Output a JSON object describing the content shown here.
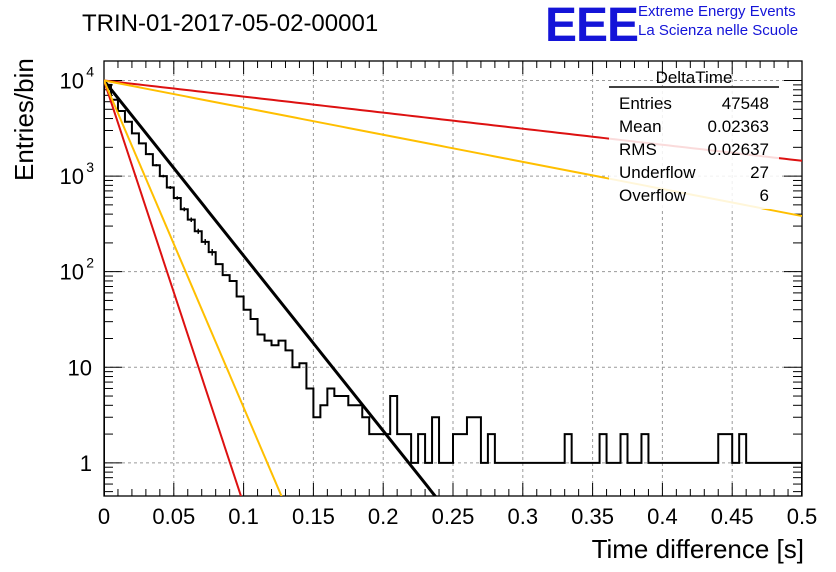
{
  "header": {
    "title": "TRIN-01-2017-05-02-00001",
    "logo_text": "EEE",
    "logo_line1": "Extreme Energy Events",
    "logo_line2": "La Scienza nelle Scuole"
  },
  "stats_box": {
    "name": "DeltaTime",
    "rows": [
      {
        "label": "Entries",
        "value": "47548"
      },
      {
        "label": "Mean",
        "value": "0.02363"
      },
      {
        "label": "RMS",
        "value": "0.02637"
      },
      {
        "label": "Underflow",
        "value": "27"
      },
      {
        "label": "Overflow",
        "value": "6"
      }
    ]
  },
  "chart_data": {
    "type": "line",
    "title": "TRIN-01-2017-05-02-00001",
    "xlabel": "Time difference [s]",
    "ylabel": "Entries/bin",
    "xlim": [
      0,
      0.5
    ],
    "ylim": [
      0.45,
      16000
    ],
    "yscale": "log",
    "grid": true,
    "x_ticks": [
      "0",
      "0.05",
      "0.1",
      "0.15",
      "0.2",
      "0.25",
      "0.3",
      "0.35",
      "0.4",
      "0.45",
      "0.5"
    ],
    "y_ticks": [
      {
        "value": 1,
        "label": "1"
      },
      {
        "value": 10,
        "label": "10"
      },
      {
        "value": 100,
        "label": "10",
        "exp": "2"
      },
      {
        "value": 1000,
        "label": "10",
        "exp": "3"
      },
      {
        "value": 10000,
        "label": "10",
        "exp": "4"
      }
    ],
    "histogram": {
      "name": "DeltaTime",
      "color": "#000000",
      "bin_width": 0.005,
      "values": [
        9000,
        6300,
        4800,
        3700,
        2800,
        2200,
        1700,
        1300,
        1000,
        760,
        590,
        450,
        350,
        265,
        205,
        160,
        120,
        92,
        80,
        55,
        40,
        32,
        22,
        19,
        17,
        19,
        15,
        10,
        11,
        6,
        3,
        4,
        6,
        5,
        5,
        4,
        4,
        3,
        2,
        2,
        2,
        5,
        2,
        2,
        1,
        2,
        1,
        3,
        1,
        1,
        2,
        2,
        3,
        3,
        1,
        2,
        1,
        1,
        1,
        1,
        1,
        1,
        1,
        1,
        1,
        1,
        2,
        1,
        1,
        1,
        1,
        2,
        1,
        1,
        2,
        1,
        1,
        2,
        1,
        1,
        1,
        1,
        1,
        1,
        1,
        1,
        1,
        1,
        2,
        2,
        1,
        2,
        1,
        1,
        1,
        1,
        1,
        1,
        1,
        1
      ]
    },
    "curves": [
      {
        "name": "fit",
        "color": "#000000",
        "y0": 10000,
        "tau": 0.0237,
        "x_end": 0.24
      },
      {
        "name": "red-steep",
        "color": "#dd1111",
        "y0": 10000,
        "tau": 0.0098,
        "x_end": 0.11
      },
      {
        "name": "orange-steep",
        "color": "#ffbf00",
        "y0": 10000,
        "tau": 0.0127,
        "x_end": 0.14
      },
      {
        "name": "red-shallow",
        "color": "#dd1111",
        "y0": 10000,
        "tau": 0.2585,
        "x_end": 0.5
      },
      {
        "name": "orange-shallow",
        "color": "#ffbf00",
        "y0": 10000,
        "tau": 0.1531,
        "x_end": 0.5
      }
    ]
  }
}
